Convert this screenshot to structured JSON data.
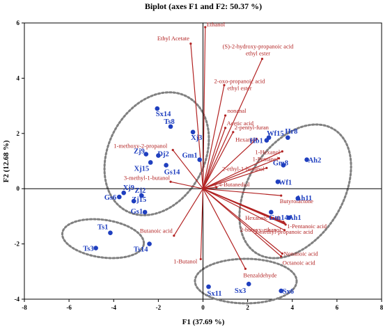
{
  "chart_data": {
    "type": "scatter",
    "title": "Biplot (axes F1 and F2: 50.37 %)",
    "xlabel": "F1 (37.69 %)",
    "ylabel": "F2 (12.68 %)",
    "xlim": [
      -8,
      8
    ],
    "ylim": [
      -4,
      6
    ],
    "xticks": [
      -8,
      -6,
      -4,
      -2,
      0,
      2,
      4,
      6,
      8
    ],
    "yticks": [
      -4,
      -2,
      0,
      2,
      4,
      6
    ],
    "grid": false,
    "colors": {
      "variables": "#b22222",
      "observations": "#1f3fbf",
      "ellipses": "#808080"
    },
    "variables": [
      {
        "name": "Ethanol",
        "x": 0.1,
        "y": 5.85
      },
      {
        "name": "Ethyl Acetate",
        "x": -0.55,
        "y": 5.25
      },
      {
        "name": "(S)-2-hydroxy-propanoic acid ethyl ester",
        "x": 2.65,
        "y": 4.7
      },
      {
        "name": "2-oxo-propanoic acid ethyl ester",
        "x": 0.95,
        "y": 3.75
      },
      {
        "name": "nonanal",
        "x": 1.0,
        "y": 2.65
      },
      {
        "name": "Acetic acid",
        "x": 1.0,
        "y": 2.2
      },
      {
        "name": "2-pentyl-furan",
        "x": 1.35,
        "y": 2.05
      },
      {
        "name": "Hexanal",
        "x": 2.4,
        "y": 1.8
      },
      {
        "name": "1-Hexanol",
        "x": 3.55,
        "y": 1.35
      },
      {
        "name": "1-Pentanol",
        "x": 3.4,
        "y": 1.1
      },
      {
        "name": "2-ethyl-1-hexanol",
        "x": 2.85,
        "y": 0.75
      },
      {
        "name": "2,4-Butanediol",
        "x": 0.6,
        "y": 0.05
      },
      {
        "name": "1-methoxy-2-propanol",
        "x": -1.35,
        "y": 1.4
      },
      {
        "name": "3-methyl-1-butanol",
        "x": -1.45,
        "y": 0.25
      },
      {
        "name": "Butyrolactone",
        "x": 3.5,
        "y": -0.25
      },
      {
        "name": "Hexanoic acid",
        "x": 3.6,
        "y": -1.2
      },
      {
        "name": "2-butoxy-ethanol",
        "x": 3.65,
        "y": -1.25
      },
      {
        "name": "1-Pentanoic acid",
        "x": 3.7,
        "y": -1.3
      },
      {
        "name": "2-methyl-propanoic acid",
        "x": 3.65,
        "y": -1.5
      },
      {
        "name": "Nonanoic acid",
        "x": 3.55,
        "y": -2.35
      },
      {
        "name": "Octanoic acid",
        "x": 3.5,
        "y": -2.45
      },
      {
        "name": "Butanoic acid",
        "x": -1.3,
        "y": -1.7
      },
      {
        "name": "1-Butanol",
        "x": -0.1,
        "y": -2.55
      },
      {
        "name": "Benzaldehyde",
        "x": 1.9,
        "y": -2.9
      }
    ],
    "observations": [
      {
        "name": "Ts1",
        "x": -4.15,
        "y": -1.6
      },
      {
        "name": "Ts3",
        "x": -4.8,
        "y": -2.15
      },
      {
        "name": "Ts14",
        "x": -2.4,
        "y": -2.0
      },
      {
        "name": "Sx14",
        "x": -2.05,
        "y": 2.9
      },
      {
        "name": "Ts8",
        "x": -1.45,
        "y": 2.25
      },
      {
        "name": "Xj3",
        "x": -0.45,
        "y": 2.05
      },
      {
        "name": "Gm1",
        "x": -0.15,
        "y": 1.05
      },
      {
        "name": "Zj9",
        "x": -2.55,
        "y": 1.25
      },
      {
        "name": "Dj2",
        "x": -2.0,
        "y": 1.2
      },
      {
        "name": "Xj15",
        "x": -2.35,
        "y": 0.95
      },
      {
        "name": "Gs14",
        "x": -1.65,
        "y": 0.85
      },
      {
        "name": "Xj9",
        "x": -3.55,
        "y": -0.15
      },
      {
        "name": "Zj2",
        "x": -2.75,
        "y": -0.25
      },
      {
        "name": "Gs6",
        "x": -3.75,
        "y": -0.3
      },
      {
        "name": "Zj15",
        "x": -3.1,
        "y": -0.45
      },
      {
        "name": "Gs1",
        "x": -2.6,
        "y": -0.85
      },
      {
        "name": "Hb1",
        "x": 2.85,
        "y": 1.75
      },
      {
        "name": "Wf15",
        "x": 2.95,
        "y": 1.85
      },
      {
        "name": "Hr8",
        "x": 3.8,
        "y": 1.85
      },
      {
        "name": "Gm8",
        "x": 3.6,
        "y": 0.85
      },
      {
        "name": "Ah2",
        "x": 4.65,
        "y": 1.05
      },
      {
        "name": "Wf1",
        "x": 3.35,
        "y": 0.25
      },
      {
        "name": "Ah11",
        "x": 4.25,
        "y": -0.35
      },
      {
        "name": "Gm14",
        "x": 3.05,
        "y": -0.85
      },
      {
        "name": "Ah1",
        "x": 3.85,
        "y": -1.05
      },
      {
        "name": "Sx11",
        "x": 0.25,
        "y": -3.55
      },
      {
        "name": "Sx3",
        "x": 2.05,
        "y": -3.45
      },
      {
        "name": "Sx6",
        "x": 3.5,
        "y": -3.7
      }
    ]
  }
}
